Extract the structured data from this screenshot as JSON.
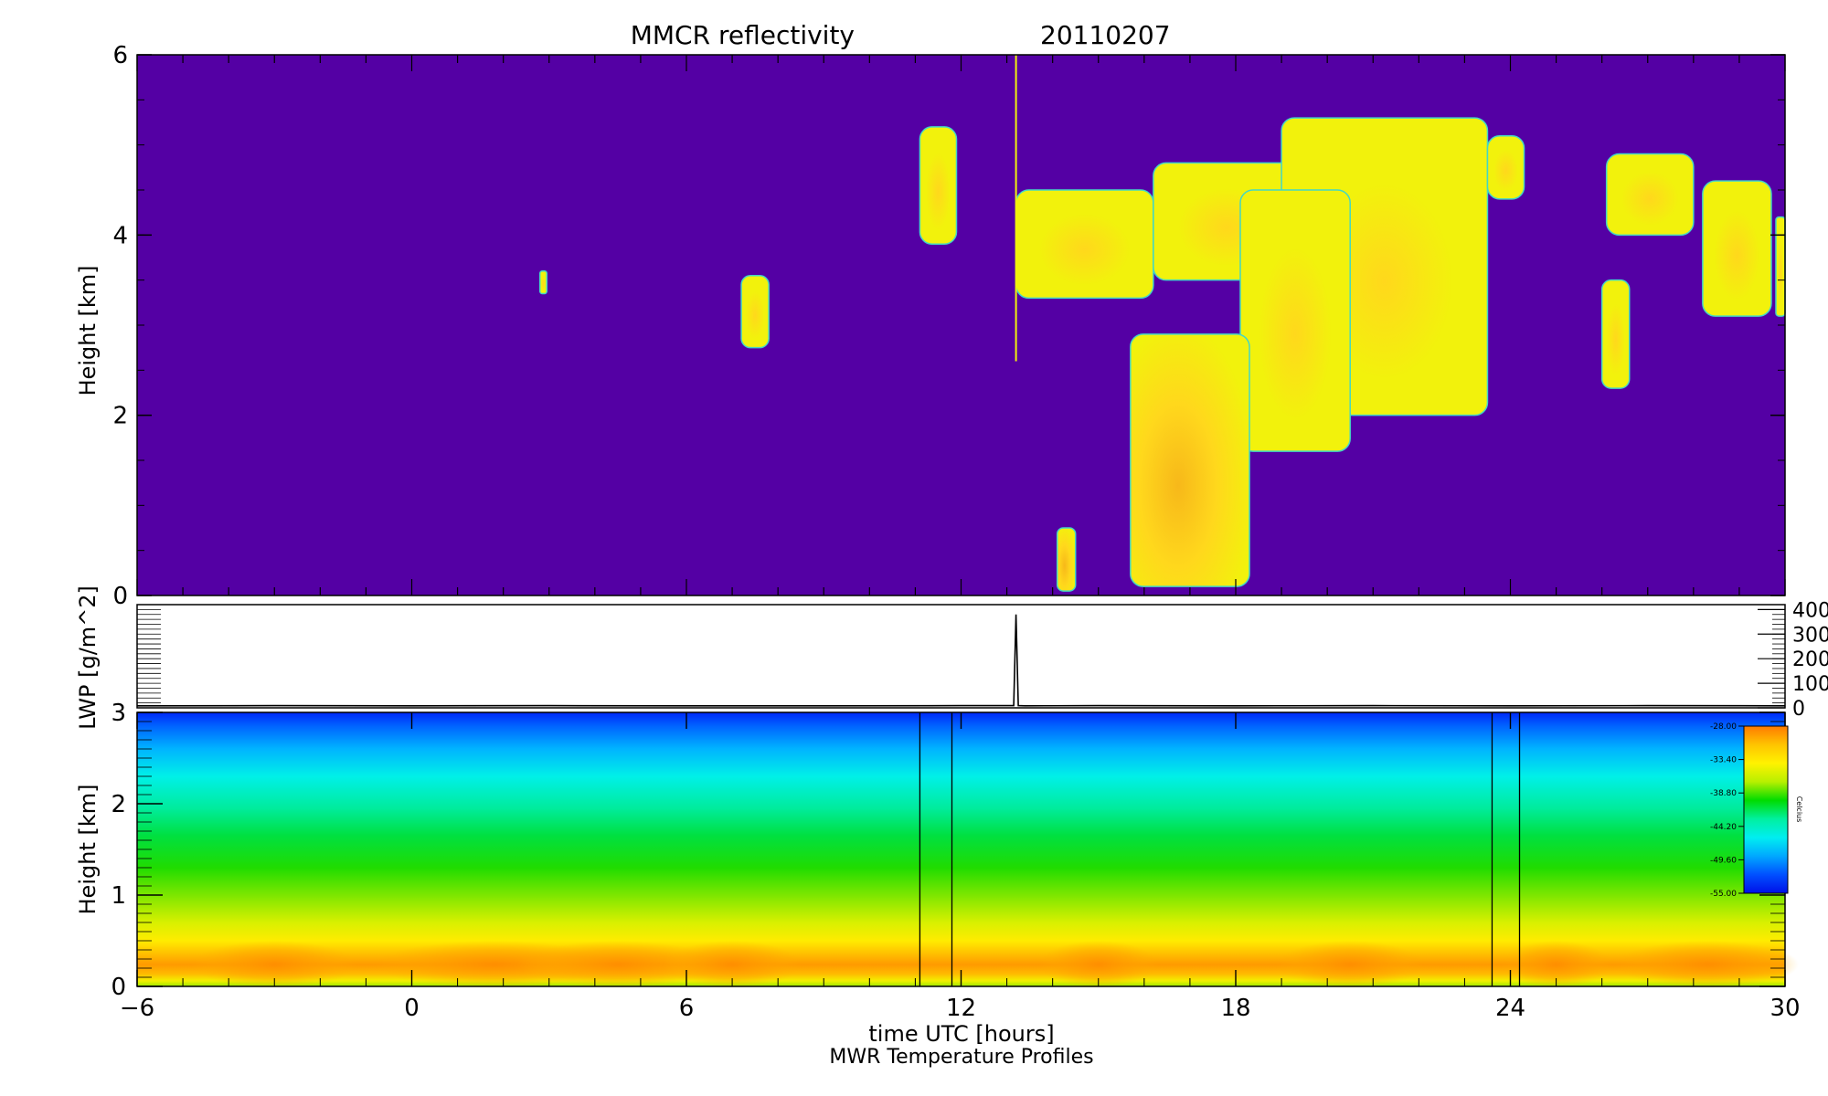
{
  "chart_data": [
    {
      "type": "heatmap",
      "title": "MMCR reflectivity",
      "date": "20110207",
      "xlabel": "",
      "ylabel": "Height [km]",
      "xlim": [
        -6,
        30
      ],
      "ylim": [
        0,
        6
      ],
      "x_ticks": [],
      "y_ticks": [
        "0",
        "2",
        "4",
        "6"
      ],
      "background_color": "#5400A4",
      "echo_colors": [
        "#F2F20C",
        "#FFD81C",
        "#F7B81A",
        "#43D7C4"
      ],
      "echoes": [
        {
          "x": [
            7.2,
            7.8
          ],
          "y": [
            2.75,
            3.55
          ]
        },
        {
          "x": [
            2.8,
            2.95
          ],
          "y": [
            3.35,
            3.6
          ]
        },
        {
          "x": [
            11.1,
            11.9
          ],
          "y": [
            3.9,
            5.2
          ]
        },
        {
          "x": [
            13.2,
            16.2
          ],
          "y": [
            3.3,
            4.5
          ]
        },
        {
          "x": [
            16.2,
            19.4
          ],
          "y": [
            3.5,
            4.8
          ]
        },
        {
          "x": [
            19.0,
            23.5
          ],
          "y": [
            2.0,
            5.3
          ]
        },
        {
          "x": [
            18.1,
            20.5
          ],
          "y": [
            1.6,
            4.5
          ]
        },
        {
          "x": [
            23.5,
            24.3
          ],
          "y": [
            4.4,
            5.1
          ]
        },
        {
          "x": [
            15.7,
            18.3
          ],
          "y": [
            0.1,
            2.9
          ]
        },
        {
          "x": [
            14.1,
            14.5
          ],
          "y": [
            0.05,
            0.75
          ]
        },
        {
          "x": [
            26.1,
            28.0
          ],
          "y": [
            4.0,
            4.9
          ]
        },
        {
          "x": [
            28.2,
            29.7
          ],
          "y": [
            3.1,
            4.6
          ]
        },
        {
          "x": [
            26.0,
            26.6
          ],
          "y": [
            2.3,
            3.5
          ]
        },
        {
          "x": [
            29.8,
            30.0
          ],
          "y": [
            3.1,
            4.2
          ]
        }
      ],
      "vertical_artifact_x": 13.2
    },
    {
      "type": "line",
      "title": "",
      "xlabel": "",
      "ylabel": "LWP [g/m^2]",
      "xlim": [
        -6,
        30
      ],
      "ylim": [
        0,
        420
      ],
      "y_ticks": [
        "0",
        "100",
        "200",
        "300",
        "400"
      ],
      "series": [
        {
          "x": [
            -6,
            -3,
            0,
            3,
            6,
            9,
            12,
            13.0,
            13.15,
            13.2,
            13.25,
            13.4,
            15,
            18,
            21,
            24,
            27,
            30
          ],
          "y": [
            8,
            9,
            8,
            9,
            8,
            8,
            9,
            9,
            9,
            380,
            9,
            8,
            9,
            8,
            9,
            8,
            9,
            8
          ]
        }
      ]
    },
    {
      "type": "heatmap",
      "title": "",
      "xlabel": "time UTC [hours]",
      "caption": "MWR Temperature Profiles",
      "ylabel": "Height [km]",
      "xlim": [
        -6,
        30
      ],
      "ylim": [
        0,
        3
      ],
      "x_ticks": [
        "-6",
        "0",
        "6",
        "12",
        "18",
        "24",
        "30"
      ],
      "y_ticks": [
        "0",
        "1",
        "2",
        "3"
      ],
      "missing_bands": [
        [
          11.1,
          11.8
        ],
        [
          23.6,
          24.2
        ]
      ],
      "colorbar": {
        "unit": "Celcius",
        "tick_labels": [
          "-28.00",
          "-33.40",
          "-38.80",
          "-44.20",
          "-49.60",
          "-55.00"
        ],
        "colors": [
          "#FF7A00",
          "#FFC400",
          "#FFF200",
          "#B8F000",
          "#00DC00",
          "#00F0A0",
          "#00EEF0",
          "#00A8FF",
          "#0050FF",
          "#0010E8"
        ]
      },
      "height_gradient": [
        {
          "h": 0.0,
          "color": "#9CE800"
        },
        {
          "h": 0.06,
          "color": "#F3F000"
        },
        {
          "h": 0.14,
          "color": "#FFB800"
        },
        {
          "h": 0.24,
          "color": "#FF9A00"
        },
        {
          "h": 0.36,
          "color": "#FFC000"
        },
        {
          "h": 0.5,
          "color": "#FFEC00"
        },
        {
          "h": 0.7,
          "color": "#D8F000"
        },
        {
          "h": 0.95,
          "color": "#8CE800"
        },
        {
          "h": 1.3,
          "color": "#20DC00"
        },
        {
          "h": 1.65,
          "color": "#00E040"
        },
        {
          "h": 1.95,
          "color": "#00EC9C"
        },
        {
          "h": 2.3,
          "color": "#00F0E8"
        },
        {
          "h": 2.6,
          "color": "#00B4FF"
        },
        {
          "h": 2.85,
          "color": "#0064FF"
        },
        {
          "h": 3.0,
          "color": "#0028F8"
        }
      ]
    }
  ]
}
